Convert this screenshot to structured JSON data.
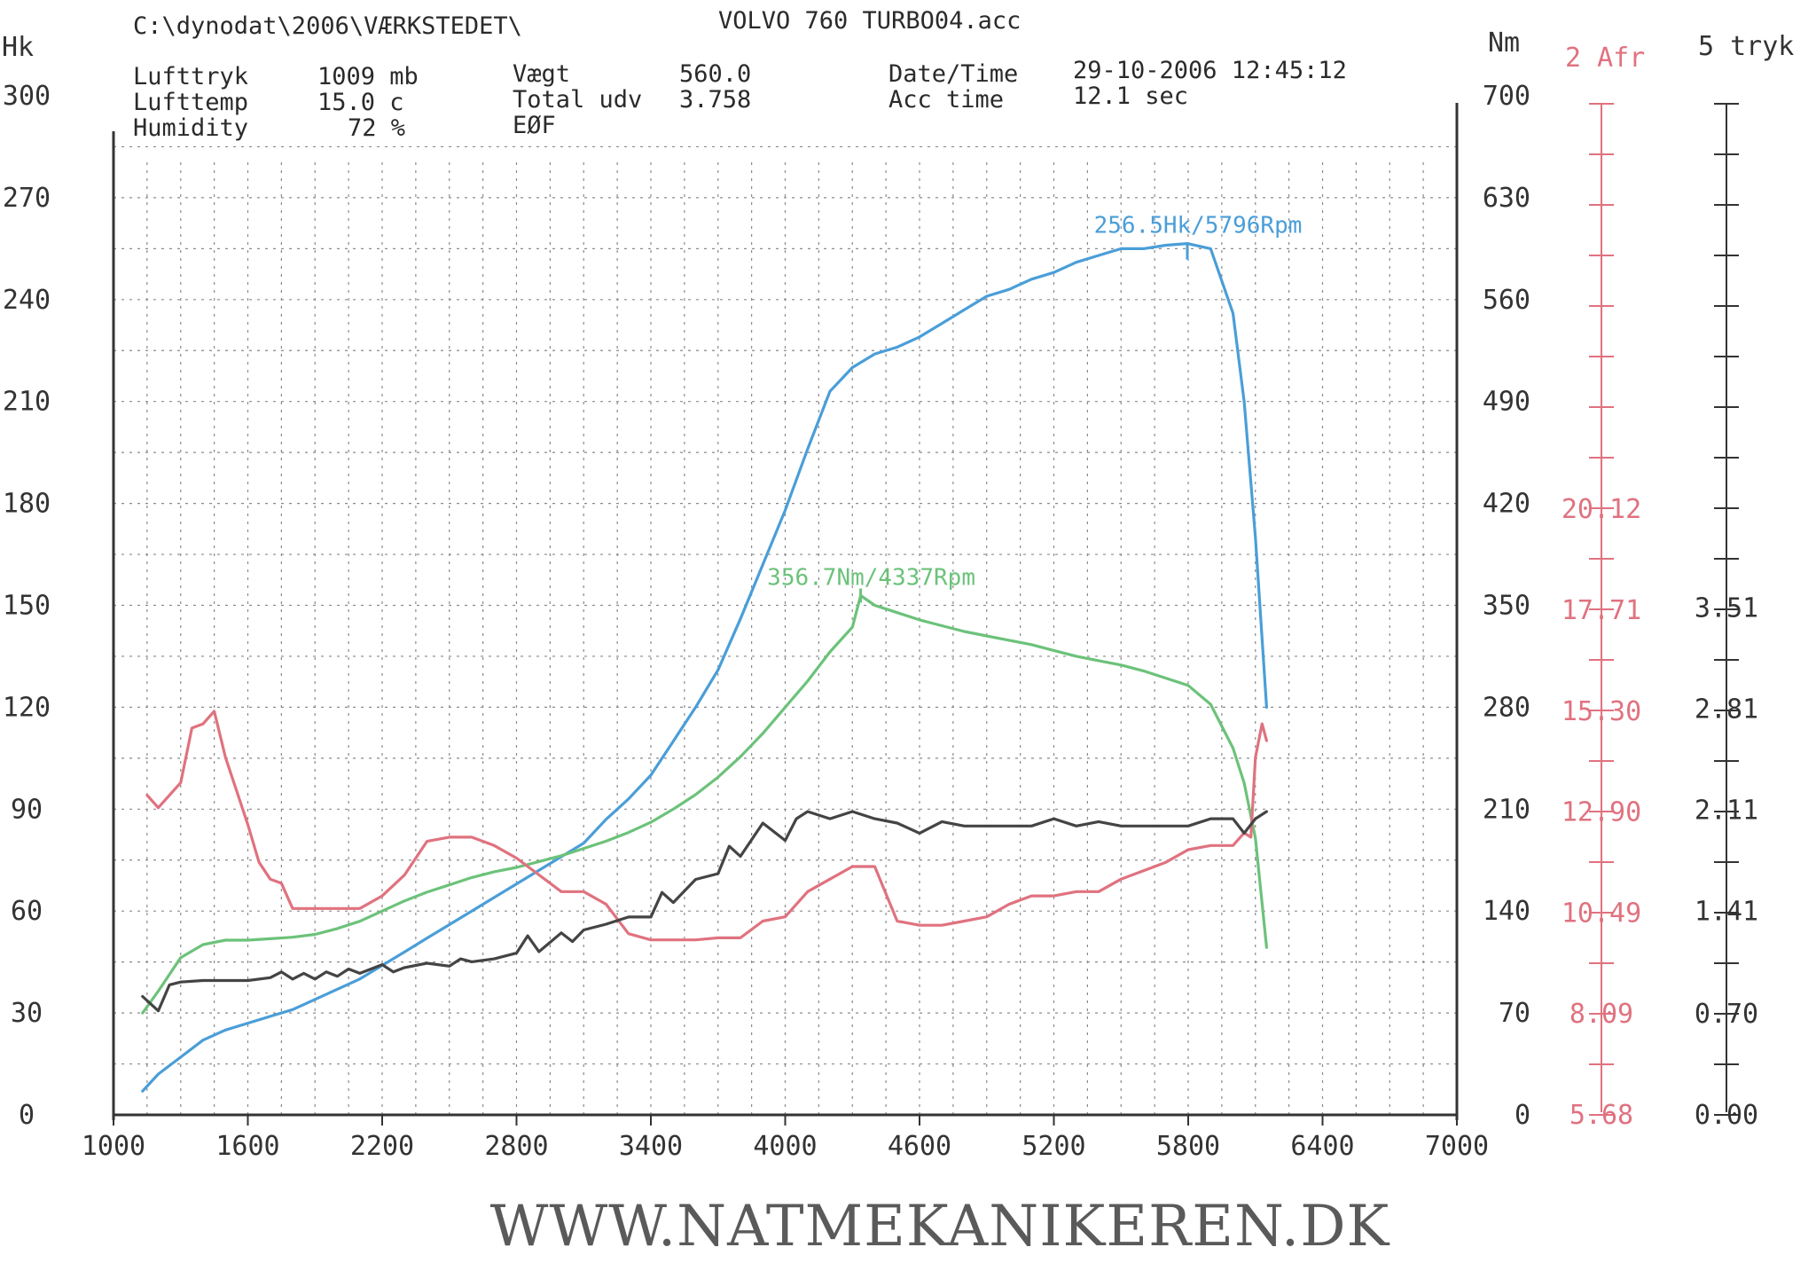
{
  "header": {
    "path": "C:\\dynodat\\2006\\VÆRKSTEDET\\",
    "file": "VOLVO 760 TURBO04.acc",
    "lufttryk_label": "Lufttryk",
    "lufttryk_value": "1009 mb",
    "lufttemp_label": "Lufttemp",
    "lufttemp_value": "15.0 c",
    "humidity_label": "Humidity",
    "humidity_value": "72 %",
    "vaegt_label": "Vægt",
    "vaegt_value": "560.0",
    "total_label": "Total udv",
    "total_value": "3.758",
    "eof_label": "EØF",
    "datetime_label": "Date/Time",
    "datetime_value": "29-10-2006 12:45:12",
    "acc_label": "Acc time",
    "acc_value": "12.1 sec"
  },
  "footer": {
    "url": "WWW.NATMEKANIKEREN.DK"
  },
  "colors": {
    "power": "#4a9ed8",
    "torque": "#6cc27a",
    "afr": "#e0727f",
    "boost": "#444444",
    "grid": "#8a8a8a"
  },
  "chart_data": {
    "type": "line",
    "x_ticks": [
      "1000",
      "1600",
      "2200",
      "2800",
      "3400",
      "4000",
      "4600",
      "5200",
      "5800",
      "6400",
      "7000"
    ],
    "xlim": [
      1000,
      7000
    ],
    "left_axis": {
      "title": "Hk",
      "ylim": [
        0,
        300
      ],
      "ticks": [
        "0",
        "30",
        "60",
        "90",
        "120",
        "150",
        "180",
        "210",
        "240",
        "270",
        "300"
      ]
    },
    "right_axis": {
      "title": "Nm",
      "ylim": [
        0,
        700
      ],
      "ticks": [
        "0",
        "70",
        "140",
        "210",
        "280",
        "350",
        "420",
        "490",
        "560",
        "630",
        "700"
      ]
    },
    "afr_axis": {
      "title": "2 Afr",
      "ticks": [
        "5.68",
        "8.09",
        "10.49",
        "12.90",
        "15.30",
        "17.71",
        "20.12"
      ]
    },
    "boost_axis": {
      "title": "5 tryk",
      "ticks": [
        "0.00",
        "0.70",
        "1.41",
        "2.11",
        "2.81",
        "3.51"
      ]
    },
    "annotations": {
      "power_peak": "256.5Hk/5796Rpm",
      "torque_peak": "356.7Nm/4337Rpm"
    },
    "series": [
      {
        "key": "power",
        "axis": "hk",
        "color": "#4a9ed8",
        "x": [
          1130,
          1200,
          1300,
          1400,
          1500,
          1600,
          1700,
          1800,
          1900,
          2000,
          2100,
          2200,
          2300,
          2400,
          2500,
          2600,
          2700,
          2800,
          2900,
          3000,
          3100,
          3200,
          3300,
          3400,
          3500,
          3600,
          3700,
          3800,
          3900,
          4000,
          4100,
          4200,
          4300,
          4400,
          4500,
          4600,
          4700,
          4800,
          4900,
          5000,
          5100,
          5200,
          5300,
          5400,
          5500,
          5600,
          5700,
          5796,
          5900,
          6000,
          6050,
          6100,
          6150
        ],
        "y": [
          7,
          12,
          17,
          22,
          25,
          27,
          29,
          31,
          34,
          37,
          40,
          44,
          48,
          52,
          56,
          60,
          64,
          68,
          72,
          76,
          80,
          87,
          93,
          100,
          110,
          120,
          131,
          146,
          162,
          178,
          196,
          213,
          220,
          224,
          226,
          229,
          233,
          237,
          241,
          243,
          246,
          248,
          251,
          253,
          255,
          255,
          256,
          256.5,
          255,
          236,
          210,
          170,
          120
        ]
      },
      {
        "key": "torque",
        "axis": "nm",
        "color": "#6cc27a",
        "x": [
          1130,
          1200,
          1300,
          1400,
          1500,
          1600,
          1700,
          1800,
          1900,
          2000,
          2100,
          2200,
          2300,
          2400,
          2500,
          2600,
          2700,
          2800,
          2900,
          3000,
          3100,
          3200,
          3300,
          3400,
          3500,
          3600,
          3700,
          3800,
          3900,
          4000,
          4100,
          4200,
          4300,
          4337,
          4400,
          4500,
          4600,
          4700,
          4800,
          4900,
          5000,
          5100,
          5200,
          5300,
          5400,
          5500,
          5600,
          5700,
          5800,
          5900,
          6000,
          6050,
          6100,
          6150
        ],
        "y": [
          70,
          85,
          108,
          117,
          120,
          120,
          121,
          122,
          124,
          128,
          133,
          140,
          147,
          153,
          158,
          163,
          167,
          170,
          174,
          178,
          183,
          188,
          194,
          201,
          210,
          220,
          232,
          246,
          262,
          280,
          298,
          318,
          335,
          356.7,
          350,
          345,
          340,
          336,
          332,
          329,
          326,
          323,
          319,
          315,
          312,
          309,
          305,
          300,
          295,
          282,
          252,
          228,
          190,
          115
        ]
      },
      {
        "key": "afr",
        "axis": "afr",
        "color": "#e0727f",
        "x": [
          1150,
          1200,
          1250,
          1300,
          1350,
          1400,
          1450,
          1500,
          1550,
          1600,
          1650,
          1700,
          1750,
          1800,
          1900,
          2000,
          2100,
          2200,
          2300,
          2400,
          2500,
          2600,
          2700,
          2800,
          2900,
          3000,
          3100,
          3200,
          3300,
          3400,
          3500,
          3600,
          3700,
          3800,
          3900,
          4000,
          4100,
          4200,
          4300,
          4400,
          4500,
          4600,
          4700,
          4800,
          4900,
          5000,
          5100,
          5200,
          5300,
          5400,
          5500,
          5600,
          5700,
          5800,
          5900,
          6000,
          6050,
          6080,
          6100,
          6130,
          6150
        ],
        "y": [
          13.3,
          13.0,
          13.3,
          13.6,
          14.9,
          15.0,
          15.3,
          14.2,
          13.4,
          12.6,
          11.7,
          11.3,
          11.2,
          10.6,
          10.6,
          10.6,
          10.6,
          10.9,
          11.4,
          12.2,
          12.3,
          12.3,
          12.1,
          11.8,
          11.4,
          11.0,
          11.0,
          10.7,
          10.0,
          9.85,
          9.85,
          9.85,
          9.9,
          9.9,
          10.3,
          10.4,
          11.0,
          11.3,
          11.6,
          11.6,
          10.3,
          10.2,
          10.2,
          10.3,
          10.4,
          10.7,
          10.9,
          10.9,
          11.0,
          11.0,
          11.3,
          11.5,
          11.7,
          12.0,
          12.1,
          12.1,
          12.4,
          12.3,
          14.2,
          15.0,
          14.6
        ]
      },
      {
        "key": "boost",
        "axis": "boost",
        "color": "#444444",
        "x": [
          1130,
          1200,
          1250,
          1300,
          1400,
          1500,
          1600,
          1700,
          1750,
          1800,
          1850,
          1900,
          1950,
          2000,
          2050,
          2100,
          2150,
          2200,
          2250,
          2300,
          2400,
          2500,
          2550,
          2600,
          2700,
          2800,
          2850,
          2900,
          3000,
          3050,
          3100,
          3200,
          3300,
          3400,
          3450,
          3500,
          3600,
          3700,
          3750,
          3800,
          3900,
          4000,
          4050,
          4100,
          4200,
          4300,
          4400,
          4500,
          4600,
          4700,
          4800,
          4900,
          5000,
          5100,
          5200,
          5300,
          5400,
          5500,
          5600,
          5700,
          5800,
          5900,
          6000,
          6050,
          6100,
          6150
        ],
        "y": [
          0.82,
          0.72,
          0.9,
          0.92,
          0.93,
          0.93,
          0.93,
          0.95,
          0.99,
          0.94,
          0.98,
          0.94,
          0.99,
          0.96,
          1.01,
          0.98,
          1.01,
          1.04,
          0.99,
          1.02,
          1.05,
          1.03,
          1.08,
          1.06,
          1.08,
          1.12,
          1.24,
          1.13,
          1.26,
          1.2,
          1.28,
          1.32,
          1.37,
          1.37,
          1.54,
          1.47,
          1.63,
          1.67,
          1.86,
          1.79,
          2.02,
          1.9,
          2.05,
          2.1,
          2.05,
          2.1,
          2.05,
          2.02,
          1.95,
          2.03,
          2.0,
          2.0,
          2.0,
          2.0,
          2.05,
          2.0,
          2.03,
          2.0,
          2.0,
          2.0,
          2.0,
          2.05,
          2.05,
          1.95,
          2.05,
          2.1
        ]
      }
    ]
  }
}
